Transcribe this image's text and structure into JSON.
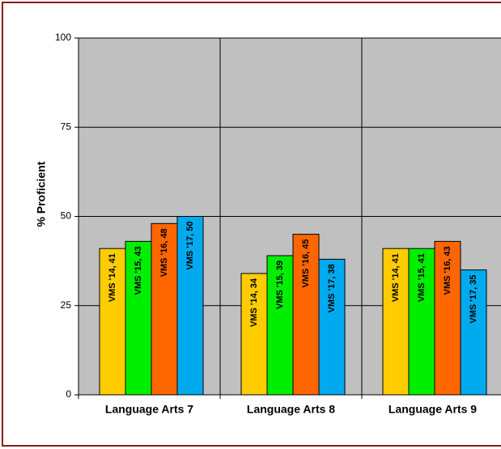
{
  "chart_data": {
    "type": "bar",
    "y_label": "% Proficient",
    "categories": [
      "Language Arts 7",
      "Language Arts 8",
      "Language Arts 9"
    ],
    "series": [
      {
        "name": "VMS '14",
        "color": "#ffcc00",
        "values": [
          41,
          34,
          41
        ],
        "value_labels": [
          "VMS '14, 41",
          "VMS '14, 34",
          "VMS '14, 41"
        ]
      },
      {
        "name": "VMS '15",
        "color": "#00ee00",
        "values": [
          43,
          39,
          41
        ],
        "value_labels": [
          "VMS '15, 43",
          "VMS '15, 39",
          "VMS '15, 41"
        ]
      },
      {
        "name": "VMS '16",
        "color": "#ff6600",
        "values": [
          48,
          45,
          43
        ],
        "value_labels": [
          "VMS '16, 48",
          "VMS '16, 45",
          "VMS '16, 43"
        ]
      },
      {
        "name": "VMS '17",
        "color": "#00aaee",
        "values": [
          50,
          38,
          35
        ],
        "value_labels": [
          "VMS '17, 50",
          "VMS '17, 38",
          "VMS '17, 35"
        ]
      }
    ],
    "ylim": [
      0,
      100
    ],
    "yticks": [
      0,
      25,
      50,
      75,
      100
    ],
    "grid": true
  }
}
